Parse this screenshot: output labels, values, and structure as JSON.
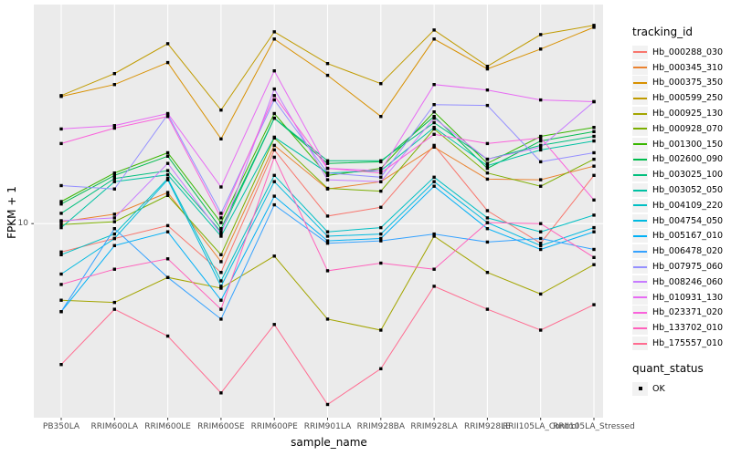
{
  "figure": {
    "y_axis_title": "FPKM + 1",
    "x_axis_title": "sample_name",
    "legend1_title": "tracking_id",
    "legend2_title": "quant_status",
    "legend2_item_label": "OK"
  },
  "chart_data": {
    "type": "line",
    "title": "",
    "xlabel": "sample_name",
    "ylabel": "FPKM + 1",
    "y_scale": "log10",
    "ylim": [
      1.4,
      92
    ],
    "y_ticks": [
      {
        "value": 10,
        "label": "10"
      }
    ],
    "grid": "major-white-on-grey",
    "panel_bg": "#EBEBEB",
    "grid_color": "#FFFFFF",
    "marker": {
      "shape": "square",
      "color": "#000000",
      "legend_label": "OK"
    },
    "legend_position": "right",
    "x_categories": [
      "PB350LA",
      "RRIM600LA",
      "RRIM600LE",
      "RRIM600SE",
      "RRIM600PE",
      "RRIM901LA",
      "RRIM928BA",
      "RRIM928LA",
      "RRIM928LE",
      "RRII105LA_Control",
      "RRII105LA_Stressed"
    ],
    "series": [
      {
        "name": "Hb_000288_030",
        "color": "#F8766D",
        "values": [
          7.5,
          8.6,
          9.8,
          6.1,
          21.1,
          10.8,
          11.8,
          22.1,
          11.4,
          8.2,
          16.3
        ]
      },
      {
        "name": "Hb_000345_310",
        "color": "#EA8331",
        "values": [
          10.2,
          11.0,
          13.7,
          6.8,
          22.1,
          14.2,
          15.3,
          21.7,
          15.7,
          15.6,
          17.9
        ]
      },
      {
        "name": "Hb_000375_350",
        "color": "#D89000",
        "values": [
          36.3,
          40.9,
          51.1,
          23.6,
          64.9,
          44.9,
          29.6,
          64.9,
          47.9,
          58.6,
          73.1
        ]
      },
      {
        "name": "Hb_000599_250",
        "color": "#C09B00",
        "values": [
          36.6,
          45.7,
          61.9,
          31.6,
          69.8,
          50.6,
          41.3,
          71.1,
          49.2,
          67.9,
          74.5
        ]
      },
      {
        "name": "Hb_000925_130",
        "color": "#A3A500",
        "values": [
          4.6,
          4.5,
          5.8,
          5.2,
          7.2,
          3.8,
          3.4,
          8.8,
          6.1,
          4.9,
          6.6
        ]
      },
      {
        "name": "Hb_000928_070",
        "color": "#7CAE00",
        "values": [
          9.9,
          10.2,
          13.3,
          7.3,
          23.8,
          14.3,
          13.9,
          26.1,
          16.7,
          14.6,
          19.2
        ]
      },
      {
        "name": "Hb_001300_150",
        "color": "#39B600",
        "values": [
          12.5,
          16.7,
          20.5,
          10.1,
          30.5,
          16.3,
          17.5,
          31.0,
          18.4,
          24.2,
          26.5
        ]
      },
      {
        "name": "Hb_002600_090",
        "color": "#00BB4E",
        "values": [
          12.2,
          16.3,
          19.8,
          9.5,
          29.1,
          18.4,
          18.7,
          29.6,
          17.5,
          23.1,
          25.4
        ]
      },
      {
        "name": "Hb_003025_100",
        "color": "#00BF7D",
        "values": [
          11.1,
          15.8,
          17.1,
          9.2,
          29.1,
          18.9,
          18.9,
          27.8,
          19.2,
          22.1,
          24.2
        ]
      },
      {
        "name": "Hb_003052_050",
        "color": "#00C1A3",
        "values": [
          9.6,
          15.3,
          16.4,
          8.8,
          24.0,
          16.7,
          17.1,
          26.5,
          18.0,
          21.1,
          23.1
        ]
      },
      {
        "name": "Hb_004109_220",
        "color": "#00BFC4",
        "values": [
          7.3,
          9.0,
          15.8,
          5.6,
          16.3,
          9.2,
          9.6,
          16.0,
          10.6,
          9.2,
          10.9
        ]
      },
      {
        "name": "Hb_004754_050",
        "color": "#00BAE0",
        "values": [
          6.0,
          8.6,
          15.6,
          5.3,
          15.3,
          8.8,
          9.0,
          15.3,
          10.1,
          8.0,
          9.6
        ]
      },
      {
        "name": "Hb_005167_010",
        "color": "#00B0F6",
        "values": [
          4.1,
          8.0,
          9.2,
          4.6,
          13.2,
          8.4,
          8.6,
          14.6,
          9.5,
          7.7,
          9.2
        ]
      },
      {
        "name": "Hb_006478_020",
        "color": "#35A2FF",
        "values": [
          4.1,
          9.5,
          5.8,
          3.8,
          12.1,
          8.2,
          8.4,
          9.0,
          8.3,
          8.6,
          7.7
        ]
      },
      {
        "name": "Hb_007975_060",
        "color": "#9590FF",
        "values": [
          14.7,
          14.2,
          30.2,
          11.1,
          35.0,
          16.7,
          16.0,
          33.4,
          33.1,
          18.7,
          20.5
        ]
      },
      {
        "name": "Hb_008246_060",
        "color": "#C77CFF",
        "values": [
          10.3,
          10.6,
          18.4,
          9.0,
          39.1,
          15.6,
          15.3,
          29.1,
          19.2,
          21.7,
          34.4
        ]
      },
      {
        "name": "Hb_010931_130",
        "color": "#E76BF3",
        "values": [
          26.1,
          27.0,
          30.5,
          14.5,
          47.0,
          17.5,
          17.1,
          40.9,
          38.7,
          35.0,
          34.4
        ]
      },
      {
        "name": "Hb_023371_020",
        "color": "#FA62DB",
        "values": [
          22.5,
          26.3,
          29.6,
          10.6,
          36.6,
          17.5,
          16.7,
          24.7,
          22.5,
          23.8,
          12.7
        ]
      },
      {
        "name": "Hb_133702_010",
        "color": "#FF62BC",
        "values": [
          5.4,
          6.3,
          7.0,
          4.2,
          19.6,
          6.2,
          6.7,
          6.3,
          10.1,
          10.0,
          7.1
        ]
      },
      {
        "name": "Hb_175557_010",
        "color": "#FF6C91",
        "values": [
          2.4,
          4.2,
          3.2,
          1.8,
          3.6,
          1.6,
          2.3,
          5.3,
          4.2,
          3.4,
          4.4
        ]
      }
    ]
  }
}
